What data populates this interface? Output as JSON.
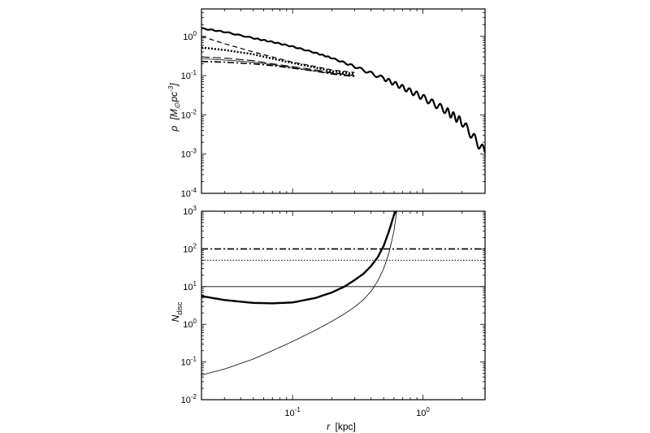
{
  "chart_data": [
    {
      "type": "line",
      "panel": "top",
      "ylabel_main": "ρ",
      "ylabel_unit": "[M",
      "ylabel_sun": "⊙",
      "ylabel_unit2": "pc",
      "ylabel_exp": "-3",
      "ylabel_close": "]",
      "xscale": "log",
      "yscale": "log",
      "xlim": [
        0.02,
        3.0
      ],
      "ylim": [
        0.0001,
        5
      ],
      "y_ticks": [
        {
          "base": "10",
          "exp": "0",
          "value": 1
        },
        {
          "base": "10",
          "exp": "-1",
          "value": 0.1
        },
        {
          "base": "10",
          "exp": "-2",
          "value": 0.01
        },
        {
          "base": "10",
          "exp": "-3",
          "value": 0.001
        },
        {
          "base": "10",
          "exp": "-4",
          "value": 0.0001
        }
      ],
      "series": [
        {
          "style": "solid-thick-noisy",
          "x": [
            0.02,
            0.03,
            0.05,
            0.07,
            0.1,
            0.15,
            0.2,
            0.3,
            0.5,
            0.7,
            1.0,
            1.5,
            2.0,
            3.0
          ],
          "y": [
            1.6,
            1.3,
            0.9,
            0.72,
            0.55,
            0.38,
            0.28,
            0.17,
            0.085,
            0.05,
            0.028,
            0.013,
            0.0065,
            0.0011
          ]
        },
        {
          "style": "dashed",
          "x": [
            0.02,
            0.03,
            0.05,
            0.07,
            0.1,
            0.15,
            0.2,
            0.3
          ],
          "y": [
            1.0,
            0.65,
            0.4,
            0.3,
            0.22,
            0.17,
            0.14,
            0.12
          ]
        },
        {
          "style": "dotted-thick",
          "x": [
            0.02,
            0.03,
            0.05,
            0.07,
            0.1,
            0.15,
            0.2,
            0.3
          ],
          "y": [
            0.52,
            0.45,
            0.35,
            0.27,
            0.21,
            0.16,
            0.13,
            0.11
          ]
        },
        {
          "style": "long-dash",
          "x": [
            0.02,
            0.03,
            0.05,
            0.07,
            0.1,
            0.15,
            0.2,
            0.3
          ],
          "y": [
            0.3,
            0.28,
            0.24,
            0.2,
            0.17,
            0.14,
            0.12,
            0.1
          ]
        },
        {
          "style": "thin-solid",
          "x": [
            0.02,
            0.03,
            0.05,
            0.07,
            0.1,
            0.15,
            0.2,
            0.3
          ],
          "y": [
            0.27,
            0.25,
            0.22,
            0.19,
            0.16,
            0.13,
            0.115,
            0.1
          ]
        },
        {
          "style": "dash-dot",
          "x": [
            0.02,
            0.03,
            0.05,
            0.07,
            0.1,
            0.15,
            0.2,
            0.3
          ],
          "y": [
            0.23,
            0.22,
            0.2,
            0.18,
            0.155,
            0.13,
            0.11,
            0.095
          ]
        }
      ]
    },
    {
      "type": "line",
      "panel": "bottom",
      "ylabel_main": "N",
      "ylabel_sub": "disc",
      "xlabel_main": "r",
      "xlabel_unit": "[kpc]",
      "xscale": "log",
      "yscale": "log",
      "xlim": [
        0.02,
        3.0
      ],
      "ylim": [
        0.01,
        1000
      ],
      "x_ticks": [
        {
          "base": "10",
          "exp": "-1",
          "value": 0.1
        },
        {
          "base": "10",
          "exp": "0",
          "value": 1.0
        }
      ],
      "y_ticks": [
        {
          "base": "10",
          "exp": "3",
          "value": 1000
        },
        {
          "base": "10",
          "exp": "2",
          "value": 100
        },
        {
          "base": "10",
          "exp": "1",
          "value": 10
        },
        {
          "base": "10",
          "exp": "0",
          "value": 1
        },
        {
          "base": "10",
          "exp": "-1",
          "value": 0.1
        },
        {
          "base": "10",
          "exp": "-2",
          "value": 0.01
        }
      ],
      "hlines": [
        {
          "style": "dash-dot",
          "y": 100
        },
        {
          "style": "dotted",
          "y": 50
        },
        {
          "style": "thin-solid",
          "y": 10
        }
      ],
      "series": [
        {
          "style": "solid-thick",
          "x": [
            0.02,
            0.03,
            0.05,
            0.07,
            0.1,
            0.15,
            0.2,
            0.25,
            0.3,
            0.35,
            0.4,
            0.45,
            0.5,
            0.55,
            0.6,
            0.62
          ],
          "y": [
            5.6,
            4.4,
            3.7,
            3.6,
            3.8,
            5.0,
            7.0,
            10,
            15,
            22,
            35,
            60,
            120,
            300,
            800,
            1000
          ]
        },
        {
          "style": "thin-solid",
          "x": [
            0.02,
            0.03,
            0.05,
            0.07,
            0.1,
            0.15,
            0.2,
            0.25,
            0.3,
            0.35,
            0.4,
            0.45,
            0.5,
            0.55,
            0.6,
            0.63
          ],
          "y": [
            0.045,
            0.065,
            0.12,
            0.2,
            0.35,
            0.7,
            1.2,
            1.9,
            2.9,
            4.5,
            7.5,
            14,
            30,
            80,
            300,
            1000
          ]
        }
      ]
    }
  ]
}
